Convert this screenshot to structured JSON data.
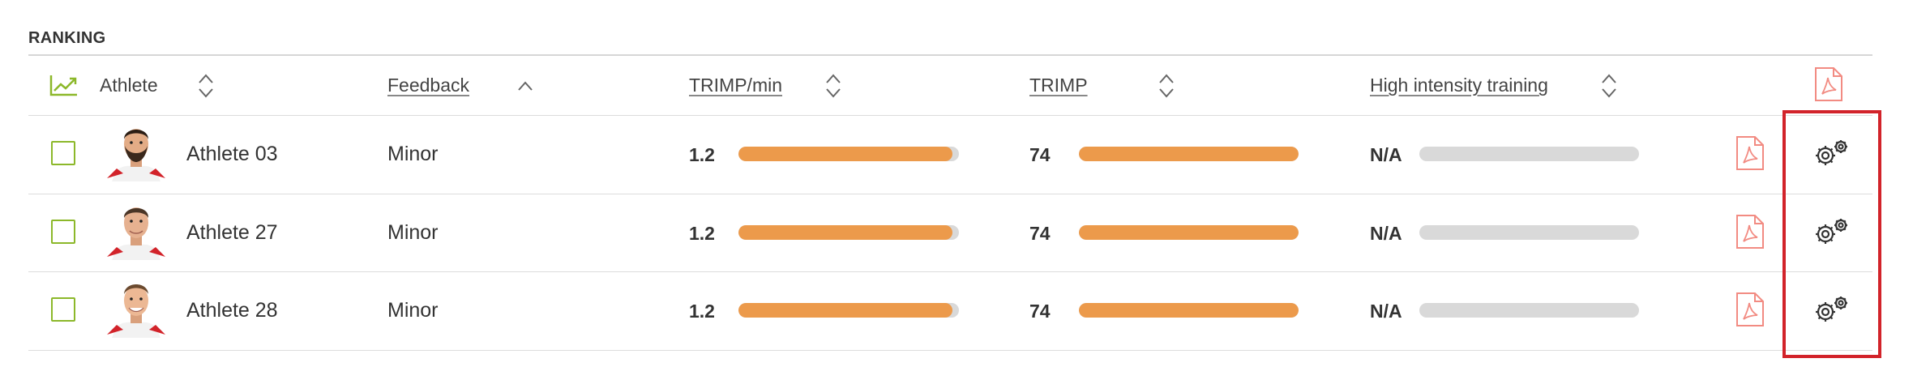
{
  "section_title": "RANKING",
  "header": {
    "trend_icon": "trend-chart-icon",
    "athlete_label": "Athlete",
    "feedback_label": "Feedback",
    "trimp_min_label": "TRIMP/min",
    "trimp_label": "TRIMP",
    "hit_label": "High intensity training",
    "pdf_icon": "pdf-icon"
  },
  "rows": [
    {
      "name": "Athlete 03",
      "feedback": "Minor",
      "trimp_min": "1.2",
      "trimp_min_fraction": 0.97,
      "trimp": "74",
      "trimp_fraction": 1.0,
      "hit": "N/A",
      "hit_fraction": 0
    },
    {
      "name": "Athlete 27",
      "feedback": "Minor",
      "trimp_min": "1.2",
      "trimp_min_fraction": 0.97,
      "trimp": "74",
      "trimp_fraction": 1.0,
      "hit": "N/A",
      "hit_fraction": 0
    },
    {
      "name": "Athlete 28",
      "feedback": "Minor",
      "trimp_min": "1.2",
      "trimp_min_fraction": 0.97,
      "trimp": "74",
      "trimp_fraction": 1.0,
      "hit": "N/A",
      "hit_fraction": 0
    }
  ],
  "colors": {
    "accent_green": "#8cb82a",
    "bar_orange": "#ec9a4b",
    "bar_track": "#d9d9d9",
    "pdf_red": "#f28b82",
    "highlight_red": "#d2232a"
  }
}
